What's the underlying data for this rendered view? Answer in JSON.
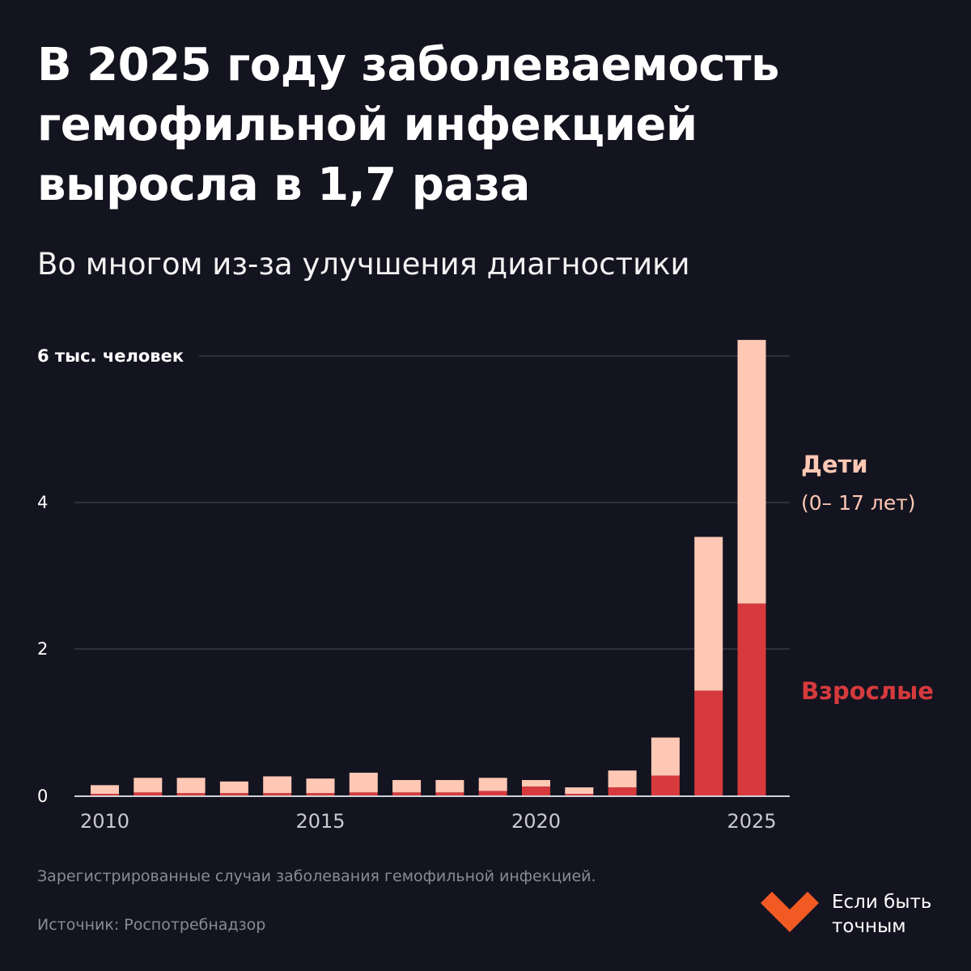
{
  "title": "В 2025 году заболеваемость гемофильной инфекцией выросла в 1,7 раза",
  "subtitle": "Во многом из-за улучшения диагностики",
  "chart_data": {
    "type": "bar",
    "stacked": true,
    "y_unit_label": "6 тыс. человек",
    "yticks": [
      {
        "value": 0,
        "label": "0"
      },
      {
        "value": 2,
        "label": "2"
      },
      {
        "value": 4,
        "label": "4"
      },
      {
        "value": 6,
        "label": "6 тыс. человек"
      }
    ],
    "ylim": [
      0,
      6
    ],
    "x": [
      2010,
      2011,
      2012,
      2013,
      2014,
      2015,
      2016,
      2017,
      2018,
      2019,
      2020,
      2021,
      2022,
      2023,
      2024,
      2025
    ],
    "x_tick_labels": [
      "2010",
      "2015",
      "2020",
      "2025"
    ],
    "grid": true,
    "legend_position": "right",
    "series": [
      {
        "name": "Взрослые",
        "color": "#d63a3d",
        "values": [
          0.02,
          0.04,
          0.03,
          0.03,
          0.03,
          0.03,
          0.04,
          0.04,
          0.04,
          0.06,
          0.12,
          0.02,
          0.11,
          0.27,
          1.43,
          2.62
        ]
      },
      {
        "name": "Дети",
        "color": "#ffc8b4",
        "values": [
          0.12,
          0.2,
          0.21,
          0.16,
          0.23,
          0.2,
          0.27,
          0.17,
          0.17,
          0.18,
          0.09,
          0.09,
          0.23,
          0.52,
          2.1,
          3.6
        ]
      }
    ]
  },
  "legend": {
    "children_label": "Дети",
    "children_range": "(0– 17 лет)",
    "adults_label": "Взрослые"
  },
  "note": "Зарегистрированные случаи заболевания гемофильной инфекцией.",
  "source": "Источник: Роспотребнадзор",
  "brand": {
    "line1": "Если быть",
    "line2": "точным",
    "logo_color": "#f25a24"
  }
}
